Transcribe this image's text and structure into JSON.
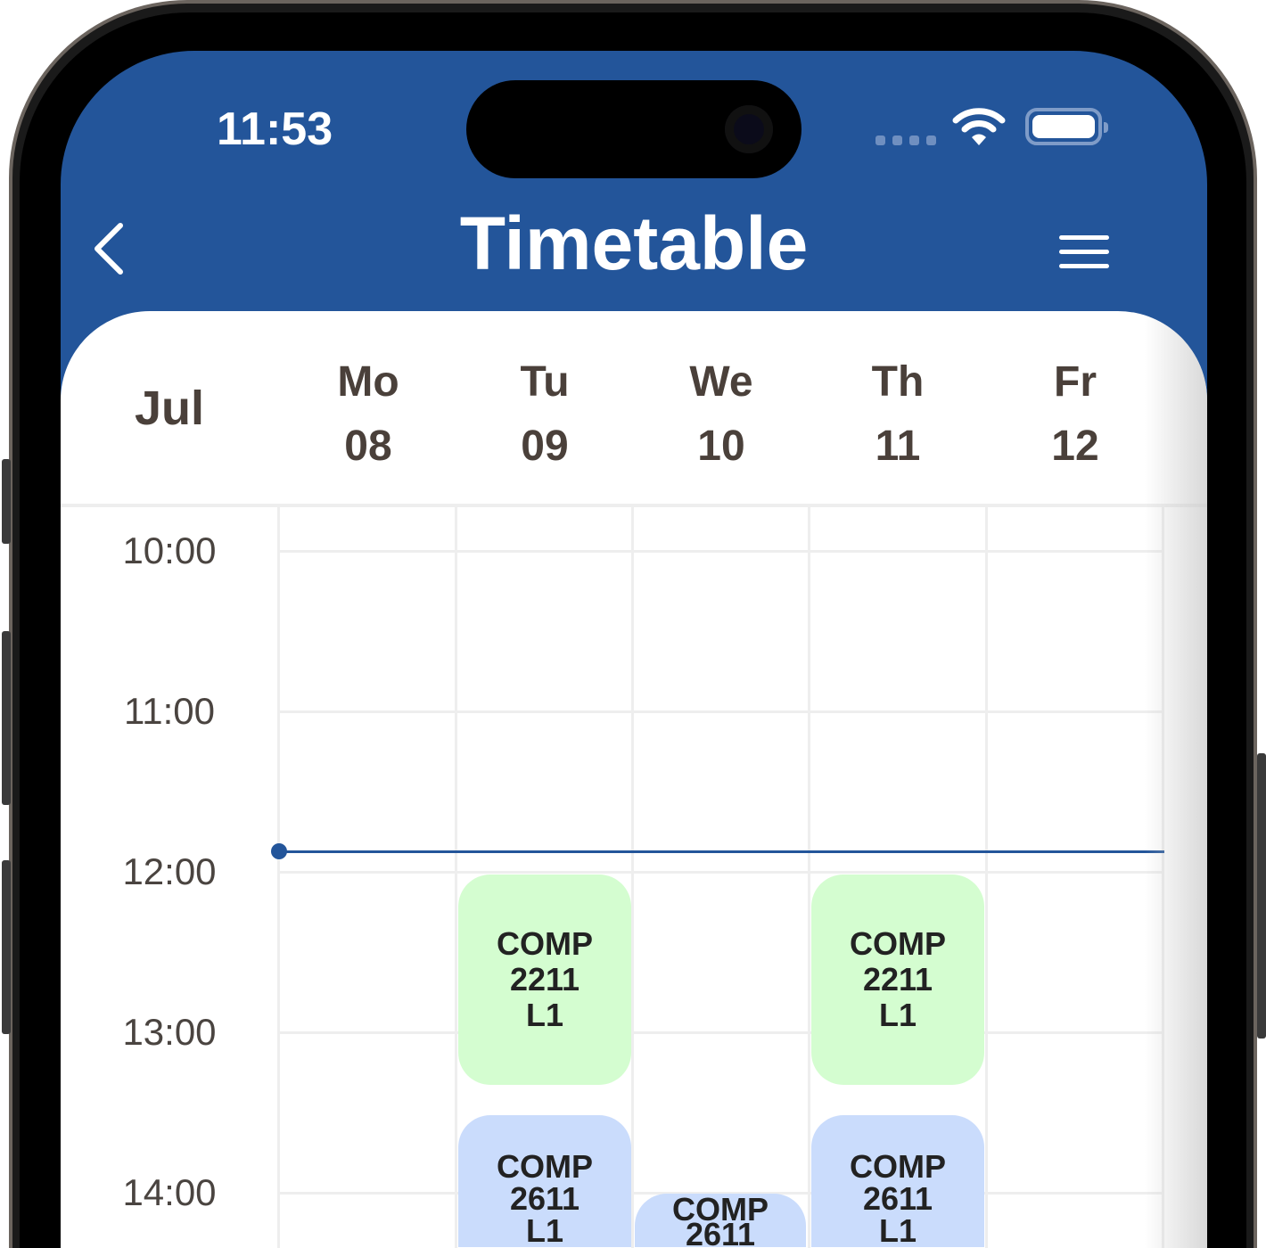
{
  "status_bar": {
    "time": "11:53"
  },
  "header": {
    "title": "Timetable",
    "back_icon": "chevron-left-icon",
    "menu_icon": "menu-icon"
  },
  "calendar": {
    "month": "Jul",
    "days": [
      {
        "name": "Mo",
        "date": "08"
      },
      {
        "name": "Tu",
        "date": "09"
      },
      {
        "name": "We",
        "date": "10"
      },
      {
        "name": "Th",
        "date": "11"
      },
      {
        "name": "Fr",
        "date": "12"
      }
    ],
    "hours": [
      "10:00",
      "11:00",
      "12:00",
      "13:00",
      "14:00"
    ],
    "current_time": "11:53",
    "events": [
      {
        "day": "Tu",
        "line1": "COMP",
        "line2": "2211",
        "line3": "L1",
        "color": "#d4fdd0"
      },
      {
        "day": "Th",
        "line1": "COMP",
        "line2": "2211",
        "line3": "L1",
        "color": "#d4fdd0"
      },
      {
        "day": "Tu",
        "line1": "COMP",
        "line2": "2611",
        "line3": "L1",
        "color": "#cadcfc"
      },
      {
        "day": "We",
        "line1": "COMP",
        "line2": "2611",
        "line3": "",
        "color": "#cadcfc"
      },
      {
        "day": "Th",
        "line1": "COMP",
        "line2": "2611",
        "line3": "L1",
        "color": "#cadcfc"
      }
    ]
  },
  "colors": {
    "primary": "#23559a",
    "lecture_green": "#d4fdd0",
    "lecture_blue": "#cadcfc"
  }
}
